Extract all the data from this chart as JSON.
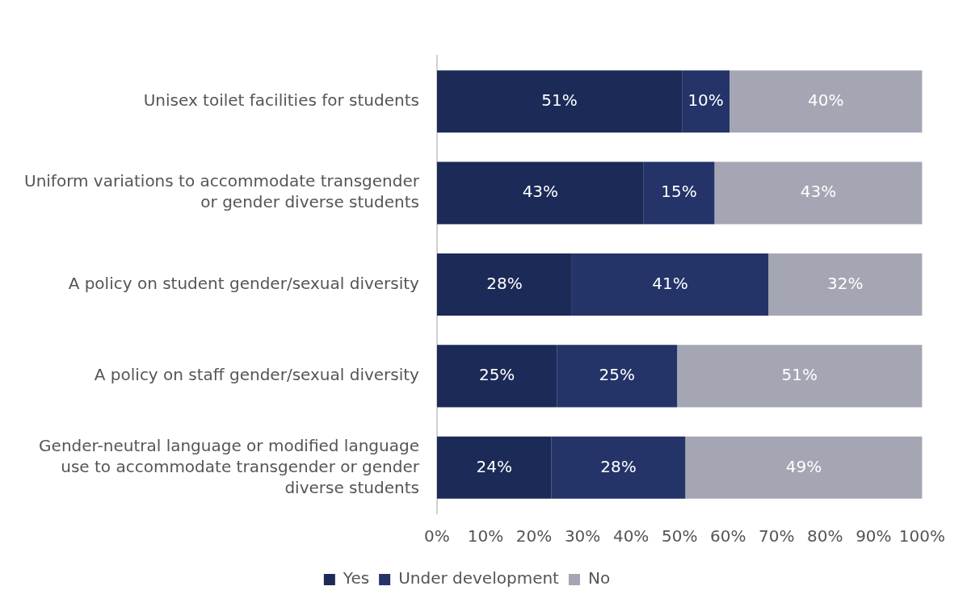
{
  "chart_data": {
    "type": "bar",
    "orientation": "horizontal",
    "stacked": true,
    "categories": [
      "Unisex toilet facilities for students",
      "Uniform variations to accommodate transgender or gender diverse students",
      "A policy on student gender/sexual diversity",
      "A policy on staff gender/sexual diversity",
      "Gender-neutral language or modified language use to accommodate transgender or gender diverse students"
    ],
    "series": [
      {
        "name": "Yes",
        "color": "#1b2a56",
        "values": [
          50.5,
          42.6,
          27.8,
          24.7,
          23.6
        ],
        "value_labels": [
          "51%",
          "43%",
          "28%",
          "25%",
          "24%"
        ]
      },
      {
        "name": "Under development",
        "color": "#243368",
        "values": [
          9.8,
          14.6,
          40.5,
          24.8,
          27.6
        ],
        "value_labels": [
          "10%",
          "15%",
          "41%",
          "25%",
          "28%"
        ]
      },
      {
        "name": "No",
        "color": "#a4a6b4",
        "values": [
          39.7,
          42.8,
          31.7,
          50.5,
          48.8
        ],
        "value_labels": [
          "40%",
          "43%",
          "32%",
          "51%",
          "49%"
        ]
      }
    ],
    "xlim": [
      0,
      100
    ],
    "xticks": [
      {
        "value": 0,
        "label": "0%"
      },
      {
        "value": 10,
        "label": "10%"
      },
      {
        "value": 20,
        "label": "20%"
      },
      {
        "value": 30,
        "label": "30%"
      },
      {
        "value": 40,
        "label": "40%"
      },
      {
        "value": 50,
        "label": "50%"
      },
      {
        "value": 60,
        "label": "60%"
      },
      {
        "value": 70,
        "label": "70%"
      },
      {
        "value": 80,
        "label": "80%"
      },
      {
        "value": 90,
        "label": "90%"
      },
      {
        "value": 100,
        "label": "100%"
      }
    ],
    "grid": false,
    "legend": "bottom"
  }
}
